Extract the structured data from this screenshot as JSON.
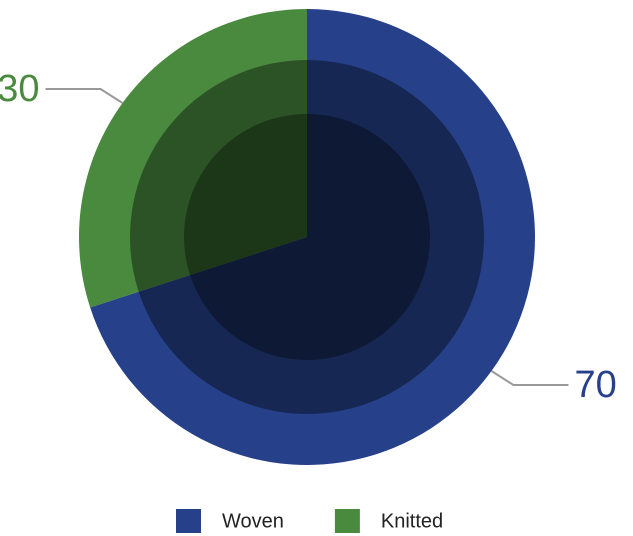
{
  "chart_data": {
    "type": "pie",
    "categories": [
      "Woven",
      "Knitted"
    ],
    "values": [
      70,
      30
    ],
    "colors": [
      "#26418a",
      "#4a8a3e"
    ],
    "legend": "bottom"
  }
}
